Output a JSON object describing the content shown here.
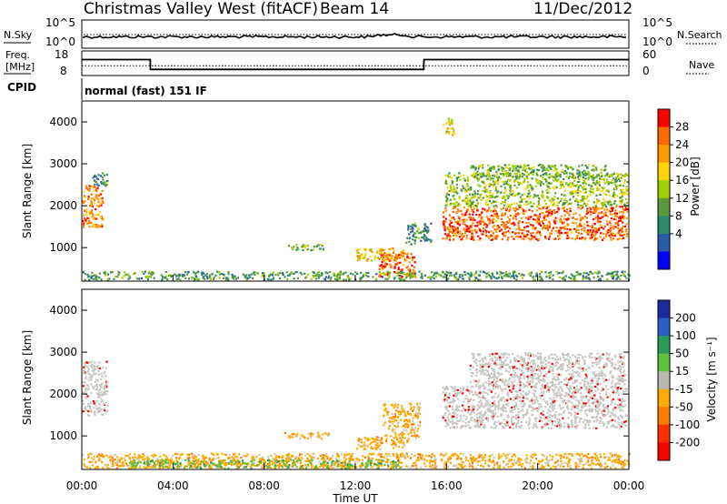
{
  "header": {
    "station": "Christmas Valley West (fitACF)",
    "beam": "Beam 14",
    "date": "11/Dec/2012"
  },
  "left_labels": {
    "nsky": "N.Sky",
    "freq_line1": "Freq.",
    "freq_line2": "[MHz]",
    "cpid": "CPID"
  },
  "right_labels": {
    "nsearch": "N.Search",
    "nave": "Nave"
  },
  "cpid_text": "normal (fast) 151 IF",
  "chart_data": [
    {
      "type": "line",
      "panel": "noise",
      "y_left_ticks": [
        "10^5",
        "10^0"
      ],
      "y_right_ticks": [
        "10^5",
        "10^0"
      ],
      "series": [
        {
          "name": "N.Sky",
          "style": "solid"
        },
        {
          "name": "N.Search",
          "style": "dotted"
        }
      ]
    },
    {
      "type": "line",
      "panel": "frequency",
      "y_left_ticks": [
        "18",
        "8"
      ],
      "y_right_ticks": [
        "60",
        "0"
      ],
      "x": [
        0,
        0.2,
        3.0,
        3.01,
        15.0,
        15.01,
        24
      ],
      "series": [
        {
          "name": "Freq.",
          "values": [
            14.5,
            14.5,
            14.5,
            10.5,
            10.5,
            14.5,
            14.5
          ]
        },
        {
          "name": "Nave",
          "values": [
            12.0,
            12.0,
            12.0,
            12.0,
            12.0,
            12.0,
            12.0
          ]
        }
      ]
    },
    {
      "type": "heatmap",
      "panel": "power",
      "ylabel": "Slant Range [km]",
      "yticks": [
        "4000",
        "3000",
        "2000",
        "1000"
      ],
      "ylim": [
        200,
        4500
      ],
      "xlim": [
        0,
        24
      ],
      "colorbar": {
        "label": "Power [dB]",
        "ticks": [
          "28",
          "24",
          "20",
          "16",
          "12",
          "8",
          "4"
        ],
        "colors": [
          "#ff0000",
          "#ff6a00",
          "#ff9900",
          "#ffd400",
          "#9cd000",
          "#5a9a3c",
          "#2e8a6a",
          "#2a5aa8",
          "#0000ff"
        ]
      },
      "regions": [
        {
          "x": [
            0.0,
            0.9
          ],
          "range": [
            1500,
            2500
          ],
          "level": 24
        },
        {
          "x": [
            0.3,
            1.1
          ],
          "range": [
            2500,
            2800
          ],
          "level": 8
        },
        {
          "x": [
            9.0,
            10.6
          ],
          "range": [
            950,
            1100
          ],
          "level": 12
        },
        {
          "x": [
            12.0,
            14.2
          ],
          "range": [
            700,
            1000
          ],
          "level": 20
        },
        {
          "x": [
            13.0,
            14.6
          ],
          "range": [
            300,
            900
          ],
          "level": 26
        },
        {
          "x": [
            14.2,
            15.3
          ],
          "range": [
            1100,
            1600
          ],
          "level": 8
        },
        {
          "x": [
            15.8,
            23.9
          ],
          "range": [
            1200,
            2000
          ],
          "level": 26
        },
        {
          "x": [
            15.9,
            23.9
          ],
          "range": [
            2000,
            2800
          ],
          "level": 14
        },
        {
          "x": [
            17.0,
            23.0
          ],
          "range": [
            2700,
            3000
          ],
          "level": 12
        },
        {
          "x": [
            15.8,
            16.3
          ],
          "range": [
            3700,
            4100
          ],
          "level": 18
        },
        {
          "x": [
            0.0,
            24.0
          ],
          "range": [
            250,
            450
          ],
          "level": 10
        }
      ]
    },
    {
      "type": "heatmap",
      "panel": "velocity",
      "ylabel": "Slant Range [km]",
      "xlabel": "Time UT",
      "yticks": [
        "4000",
        "3000",
        "2000",
        "1000"
      ],
      "xticks": [
        "00:00",
        "04:00",
        "08:00",
        "12:00",
        "16:00",
        "20:00",
        "00:00"
      ],
      "ylim": [
        200,
        4500
      ],
      "xlim": [
        0,
        24
      ],
      "colorbar": {
        "label": "Velocity [m s⁻¹]",
        "ticks": [
          "200",
          "100",
          "50",
          "15",
          "-15",
          "-50",
          "-100",
          "-200"
        ],
        "colors": [
          "#1c2aa0",
          "#2a5fc8",
          "#2a9a5a",
          "#60c040",
          "#b8b8b0",
          "#ffaa00",
          "#ff7a00",
          "#ff3000",
          "#ff0000"
        ]
      },
      "regions": [
        {
          "x": [
            0.0,
            1.1
          ],
          "range": [
            1500,
            2800
          ],
          "velocity": 0
        },
        {
          "x": [
            8.8,
            10.8
          ],
          "range": [
            950,
            1100
          ],
          "velocity": -40
        },
        {
          "x": [
            12.0,
            14.3
          ],
          "range": [
            700,
            1000
          ],
          "velocity": -40
        },
        {
          "x": [
            13.2,
            14.8
          ],
          "range": [
            950,
            1800
          ],
          "velocity": -60
        },
        {
          "x": [
            15.8,
            23.9
          ],
          "range": [
            1200,
            2200
          ],
          "velocity": 0
        },
        {
          "x": [
            17.0,
            23.8
          ],
          "range": [
            2200,
            3000
          ],
          "velocity": 5
        },
        {
          "x": [
            0.0,
            24.0
          ],
          "range": [
            250,
            600
          ],
          "velocity": -40
        },
        {
          "x": [
            2.0,
            14.0
          ],
          "range": [
            250,
            450
          ],
          "velocity": 40
        }
      ]
    }
  ]
}
